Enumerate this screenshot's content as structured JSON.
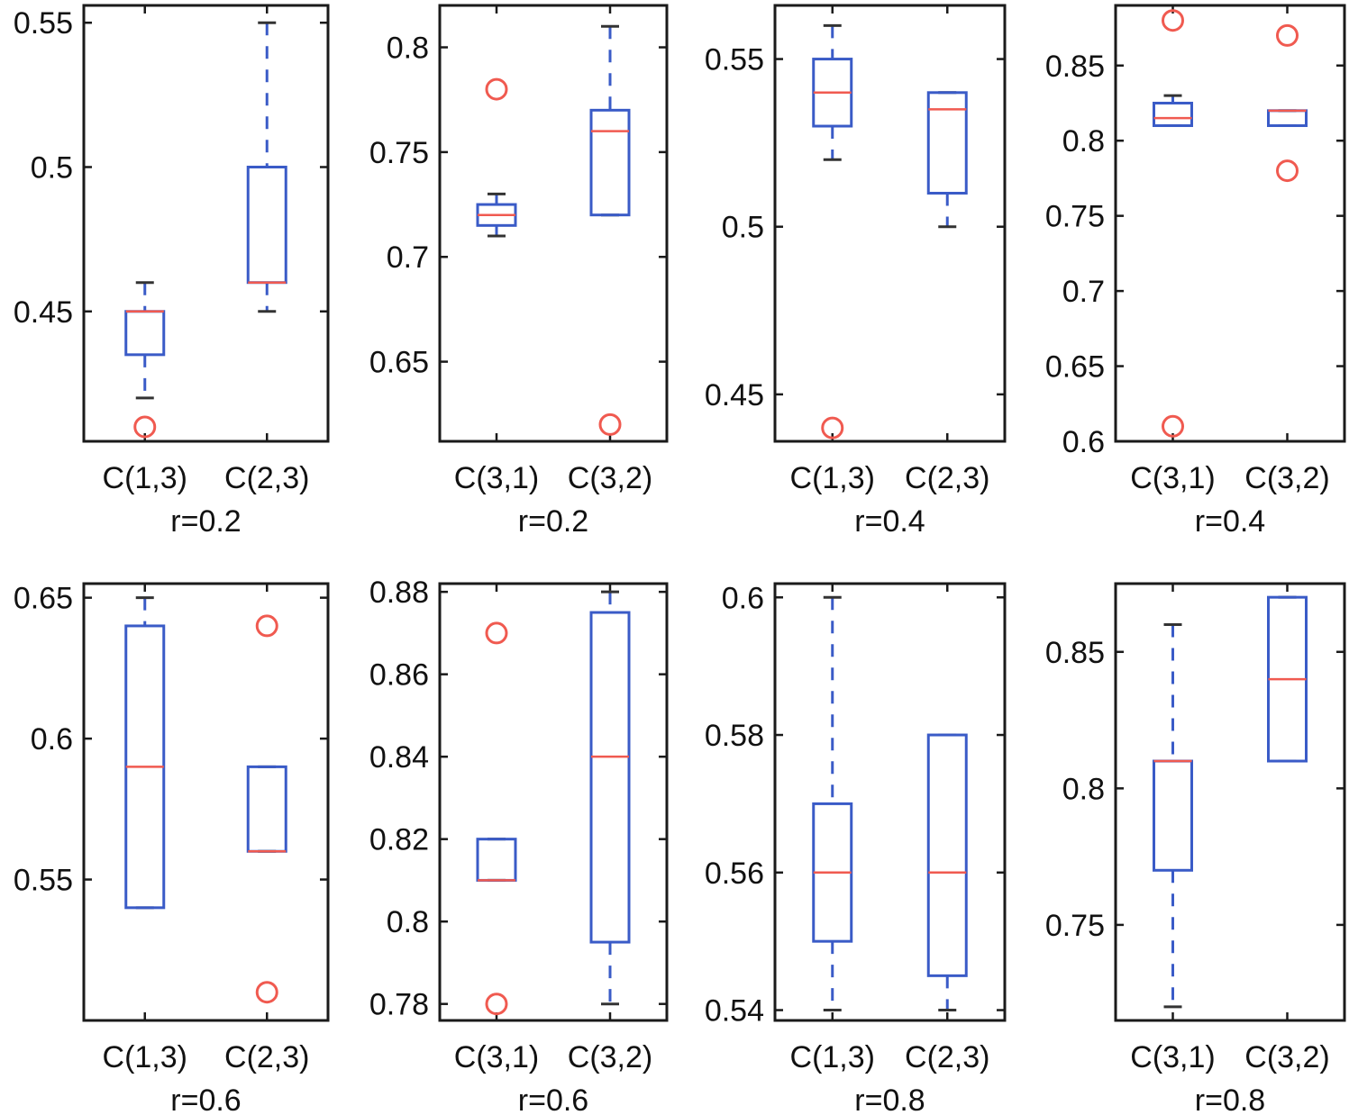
{
  "chart_data": [
    {
      "type": "boxplot",
      "r_label": "r=0.2",
      "ylim": [
        0.405,
        0.556
      ],
      "yticks": [
        0.45,
        0.5,
        0.55
      ],
      "tick_labels": [
        "0.45",
        "0.5",
        "0.55"
      ],
      "categories": [
        "C(1,3)",
        "C(2,3)"
      ],
      "boxes": [
        {
          "name": "C(1,3)",
          "whisker_low": 0.42,
          "q1": 0.435,
          "median": 0.45,
          "q3": 0.45,
          "whisker_high": 0.46,
          "outliers": [
            0.41
          ]
        },
        {
          "name": "C(2,3)",
          "whisker_low": 0.45,
          "q1": 0.46,
          "median": 0.46,
          "q3": 0.5,
          "whisker_high": 0.55,
          "outliers": []
        }
      ]
    },
    {
      "type": "boxplot",
      "r_label": "r=0.2",
      "ylim": [
        0.612,
        0.82
      ],
      "yticks": [
        0.65,
        0.7,
        0.75,
        0.8
      ],
      "tick_labels": [
        "0.65",
        "0.7",
        "0.75",
        "0.8"
      ],
      "categories": [
        "C(3,1)",
        "C(3,2)"
      ],
      "boxes": [
        {
          "name": "C(3,1)",
          "whisker_low": 0.71,
          "q1": 0.715,
          "median": 0.72,
          "q3": 0.725,
          "whisker_high": 0.73,
          "outliers": [
            0.78
          ]
        },
        {
          "name": "C(3,2)",
          "whisker_low": 0.72,
          "q1": 0.72,
          "median": 0.76,
          "q3": 0.77,
          "whisker_high": 0.81,
          "outliers": [
            0.62
          ]
        }
      ]
    },
    {
      "type": "boxplot",
      "r_label": "r=0.4",
      "ylim": [
        0.436,
        0.566
      ],
      "yticks": [
        0.45,
        0.5,
        0.55
      ],
      "tick_labels": [
        "0.45",
        "0.5",
        "0.55"
      ],
      "categories": [
        "C(1,3)",
        "C(2,3)"
      ],
      "boxes": [
        {
          "name": "C(1,3)",
          "whisker_low": 0.52,
          "q1": 0.53,
          "median": 0.54,
          "q3": 0.55,
          "whisker_high": 0.56,
          "outliers": [
            0.44
          ]
        },
        {
          "name": "C(2,3)",
          "whisker_low": 0.5,
          "q1": 0.51,
          "median": 0.535,
          "q3": 0.54,
          "whisker_high": 0.54,
          "outliers": []
        }
      ]
    },
    {
      "type": "boxplot",
      "r_label": "r=0.4",
      "ylim": [
        0.6,
        0.89
      ],
      "yticks": [
        0.6,
        0.65,
        0.7,
        0.75,
        0.8,
        0.85
      ],
      "tick_labels": [
        "0.6",
        "0.65",
        "0.7",
        "0.75",
        "0.8",
        "0.85"
      ],
      "categories": [
        "C(3,1)",
        "C(3,2)"
      ],
      "boxes": [
        {
          "name": "C(3,1)",
          "whisker_low": 0.81,
          "q1": 0.81,
          "median": 0.815,
          "q3": 0.825,
          "whisker_high": 0.83,
          "outliers": [
            0.88,
            0.61
          ]
        },
        {
          "name": "C(3,2)",
          "whisker_low": 0.81,
          "q1": 0.81,
          "median": 0.82,
          "q3": 0.82,
          "whisker_high": 0.82,
          "outliers": [
            0.87,
            0.78
          ]
        }
      ]
    },
    {
      "type": "boxplot",
      "r_label": "r=0.6",
      "ylim": [
        0.5,
        0.655
      ],
      "yticks": [
        0.55,
        0.6,
        0.65
      ],
      "tick_labels": [
        "0.55",
        "0.6",
        "0.65"
      ],
      "categories": [
        "C(1,3)",
        "C(2,3)"
      ],
      "boxes": [
        {
          "name": "C(1,3)",
          "whisker_low": 0.54,
          "q1": 0.54,
          "median": 0.59,
          "q3": 0.64,
          "whisker_high": 0.65,
          "outliers": []
        },
        {
          "name": "C(2,3)",
          "whisker_low": 0.56,
          "q1": 0.56,
          "median": 0.56,
          "q3": 0.59,
          "whisker_high": 0.59,
          "outliers": [
            0.64,
            0.51
          ]
        }
      ]
    },
    {
      "type": "boxplot",
      "r_label": "r=0.6",
      "ylim": [
        0.776,
        0.882
      ],
      "yticks": [
        0.78,
        0.8,
        0.82,
        0.84,
        0.86,
        0.88
      ],
      "tick_labels": [
        "0.78",
        "0.8",
        "0.82",
        "0.84",
        "0.86",
        "0.88"
      ],
      "categories": [
        "C(3,1)",
        "C(3,2)"
      ],
      "boxes": [
        {
          "name": "C(3,1)",
          "whisker_low": 0.81,
          "q1": 0.81,
          "median": 0.81,
          "q3": 0.82,
          "whisker_high": 0.82,
          "outliers": [
            0.87,
            0.78
          ]
        },
        {
          "name": "C(3,2)",
          "whisker_low": 0.78,
          "q1": 0.795,
          "median": 0.84,
          "q3": 0.875,
          "whisker_high": 0.88,
          "outliers": []
        }
      ]
    },
    {
      "type": "boxplot",
      "r_label": "r=0.8",
      "ylim": [
        0.5385,
        0.602
      ],
      "yticks": [
        0.54,
        0.56,
        0.58,
        0.6
      ],
      "tick_labels": [
        "0.54",
        "0.56",
        "0.58",
        "0.6"
      ],
      "categories": [
        "C(1,3)",
        "C(2,3)"
      ],
      "boxes": [
        {
          "name": "C(1,3)",
          "whisker_low": 0.54,
          "q1": 0.55,
          "median": 0.56,
          "q3": 0.57,
          "whisker_high": 0.6,
          "outliers": []
        },
        {
          "name": "C(2,3)",
          "whisker_low": 0.54,
          "q1": 0.545,
          "median": 0.56,
          "q3": 0.58,
          "whisker_high": 0.58,
          "outliers": []
        }
      ]
    },
    {
      "type": "boxplot",
      "r_label": "r=0.8",
      "ylim": [
        0.715,
        0.875
      ],
      "yticks": [
        0.75,
        0.8,
        0.85
      ],
      "tick_labels": [
        "0.75",
        "0.8",
        "0.85"
      ],
      "categories": [
        "C(3,1)",
        "C(3,2)"
      ],
      "boxes": [
        {
          "name": "C(3,1)",
          "whisker_low": 0.72,
          "q1": 0.77,
          "median": 0.81,
          "q3": 0.81,
          "whisker_high": 0.86,
          "outliers": []
        },
        {
          "name": "C(3,2)",
          "whisker_low": 0.81,
          "q1": 0.81,
          "median": 0.84,
          "q3": 0.87,
          "whisker_high": 0.87,
          "outliers": []
        }
      ]
    }
  ]
}
